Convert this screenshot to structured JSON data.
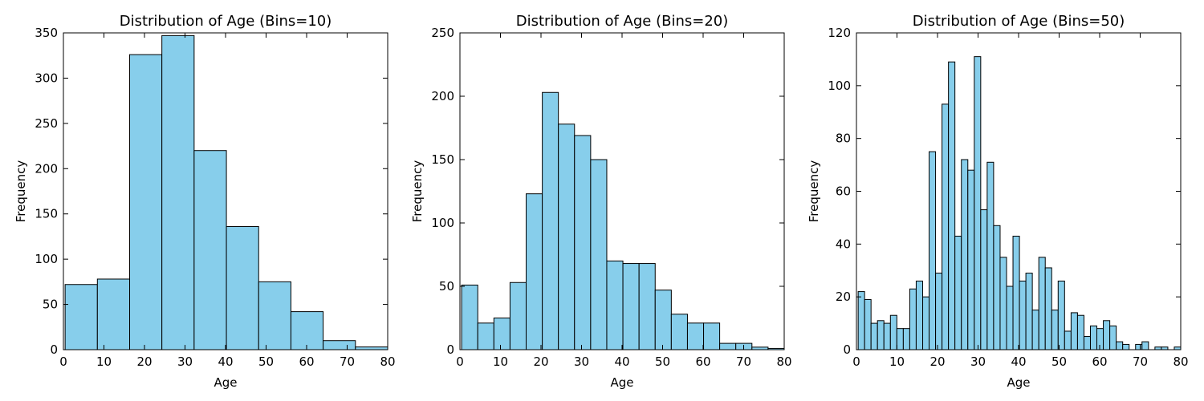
{
  "colors": {
    "bar_fill": "#87ceeb",
    "bar_edge": "#000000",
    "background": "#ffffff"
  },
  "chart_data": [
    {
      "type": "bar",
      "title": "Distribution of Age (Bins=10)",
      "xlabel": "Age",
      "ylabel": "Frequency",
      "xlim": [
        0,
        80
      ],
      "ylim": [
        0,
        350
      ],
      "xticks": [
        0,
        10,
        20,
        30,
        40,
        50,
        60,
        70,
        80
      ],
      "yticks": [
        0,
        50,
        100,
        150,
        200,
        250,
        300,
        350
      ],
      "bin_edges": [
        0.42,
        8.38,
        16.34,
        24.29,
        32.25,
        40.21,
        48.17,
        56.13,
        64.08,
        72.04,
        80.0
      ],
      "values": [
        72,
        78,
        326,
        347,
        220,
        136,
        75,
        42,
        10,
        3
      ]
    },
    {
      "type": "bar",
      "title": "Distribution of Age (Bins=20)",
      "xlabel": "Age",
      "ylabel": "Frequency",
      "xlim": [
        0,
        80
      ],
      "ylim": [
        0,
        250
      ],
      "xticks": [
        0,
        10,
        20,
        30,
        40,
        50,
        60,
        70,
        80
      ],
      "yticks": [
        0,
        50,
        100,
        150,
        200,
        250
      ],
      "bin_edges": [
        0.42,
        4.4,
        8.38,
        12.36,
        16.34,
        20.32,
        24.29,
        28.27,
        32.25,
        36.23,
        40.21,
        44.19,
        48.17,
        52.15,
        56.13,
        60.11,
        64.08,
        68.06,
        72.04,
        76.02,
        80.0
      ],
      "values": [
        51,
        21,
        25,
        53,
        123,
        203,
        178,
        169,
        150,
        70,
        68,
        68,
        47,
        28,
        21,
        21,
        5,
        5,
        2,
        1
      ]
    },
    {
      "type": "bar",
      "title": "Distribution of Age (Bins=50)",
      "xlabel": "Age",
      "ylabel": "Frequency",
      "xlim": [
        0,
        80
      ],
      "ylim": [
        0,
        120
      ],
      "xticks": [
        0,
        10,
        20,
        30,
        40,
        50,
        60,
        70,
        80
      ],
      "yticks": [
        0,
        20,
        40,
        60,
        80,
        100,
        120
      ],
      "bin_edges": [
        0.42,
        2.01,
        3.6,
        5.19,
        6.78,
        8.38,
        9.97,
        11.56,
        13.15,
        14.74,
        16.34,
        17.93,
        19.52,
        21.11,
        22.7,
        24.29,
        25.89,
        27.48,
        29.07,
        30.66,
        32.25,
        33.84,
        35.44,
        37.03,
        38.62,
        40.21,
        41.8,
        43.39,
        44.99,
        46.58,
        48.17,
        49.76,
        51.35,
        52.95,
        54.54,
        56.13,
        57.72,
        59.31,
        60.9,
        62.5,
        64.09,
        65.68,
        67.27,
        68.86,
        70.45,
        72.05,
        73.64,
        75.23,
        76.82,
        78.41,
        80.0
      ],
      "values": [
        22,
        19,
        10,
        11,
        10,
        13,
        8,
        8,
        23,
        26,
        20,
        75,
        29,
        93,
        109,
        43,
        72,
        68,
        111,
        53,
        71,
        47,
        35,
        24,
        43,
        26,
        29,
        15,
        35,
        31,
        15,
        26,
        7,
        14,
        13,
        5,
        9,
        8,
        11,
        9,
        3,
        2,
        0,
        2,
        3,
        0,
        1,
        1,
        0,
        1
      ]
    }
  ]
}
